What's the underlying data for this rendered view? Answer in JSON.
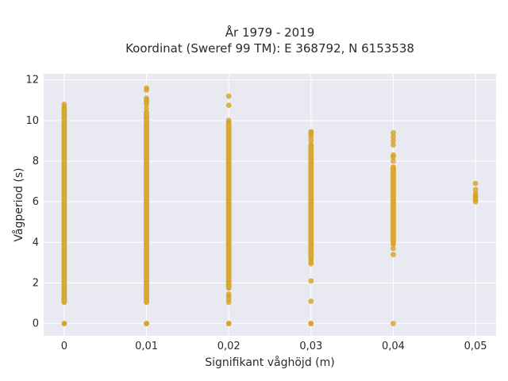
{
  "chart_data": {
    "type": "scatter",
    "title_lines": [
      "År 1979 - 2019",
      "Koordinat (Sweref 99 TM): E 368792, N 6153538"
    ],
    "xlabel": "Signifikant våghöjd (m)",
    "ylabel": "Vågperiod (s)",
    "xlim": [
      -0.0025,
      0.0525
    ],
    "ylim": [
      -0.6,
      12.3
    ],
    "xticks": [
      0,
      0.01,
      0.02,
      0.03,
      0.04,
      0.05
    ],
    "xtick_labels": [
      "0",
      "0,01",
      "0,02",
      "0,03",
      "0,04",
      "0,05"
    ],
    "yticks": [
      0,
      2,
      4,
      6,
      8,
      10,
      12
    ],
    "ytick_labels": [
      "0",
      "2",
      "4",
      "6",
      "8",
      "10",
      "12"
    ],
    "grid": true,
    "marker_color": "#d4a322",
    "plot_background": "#e9e9f2",
    "series": [
      {
        "x": 0,
        "bands": [
          [
            1.05,
            10.6
          ]
        ],
        "points": [
          0,
          0,
          10.7,
          10.8
        ]
      },
      {
        "x": 0.01,
        "bands": [
          [
            1.05,
            10.4
          ]
        ],
        "points": [
          0,
          0,
          10.6,
          10.8,
          10.9,
          11.0,
          11.1,
          11.5,
          11.6
        ]
      },
      {
        "x": 0.02,
        "bands": [
          [
            1.75,
            9.9
          ]
        ],
        "points": [
          0,
          0,
          1.05,
          1.2,
          1.35,
          1.45,
          10.0,
          10.75,
          11.2
        ]
      },
      {
        "x": 0.03,
        "bands": [
          [
            3.2,
            8.8
          ]
        ],
        "points": [
          0,
          0,
          1.1,
          2.1,
          2.95,
          3.05,
          9.0,
          9.15,
          9.3,
          9.4,
          9.45
        ]
      },
      {
        "x": 0.04,
        "bands": [
          [
            4.0,
            7.7
          ]
        ],
        "points": [
          0,
          3.4,
          3.7,
          3.9,
          8.0,
          8.2,
          8.3,
          8.8,
          9.0,
          9.2,
          9.4
        ]
      },
      {
        "x": 0.05,
        "bands": [],
        "points": [
          6.0,
          6.1,
          6.2,
          6.3,
          6.4,
          6.6,
          6.9
        ]
      }
    ]
  }
}
